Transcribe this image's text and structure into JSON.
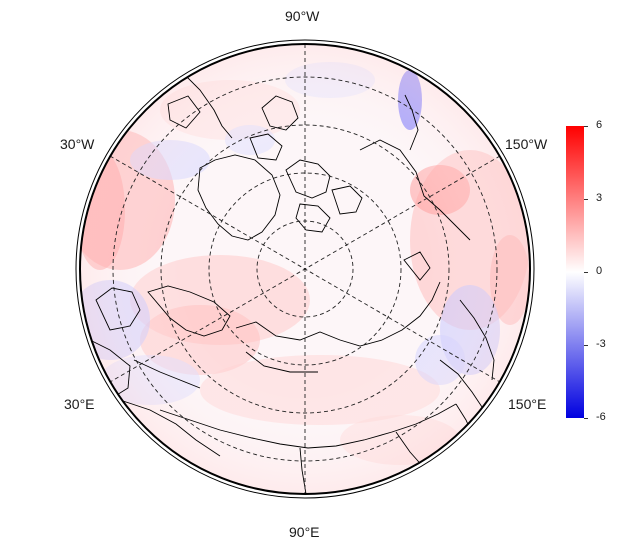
{
  "map": {
    "projection": "polar stereographic (north pole)",
    "longitude_labels": [
      "90°W",
      "30°W",
      "150°W",
      "30°E",
      "150°E",
      "90°E"
    ],
    "graticule_style": "dashed",
    "colormap": [
      "#0000e0",
      "#ffffff",
      "#ff0000"
    ]
  },
  "colorbar": {
    "min": -6,
    "max": 6,
    "ticks": [
      "6",
      "3",
      "0",
      "-3",
      "-6"
    ]
  }
}
